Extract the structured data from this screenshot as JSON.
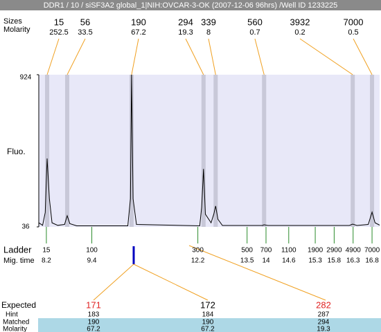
{
  "header": {
    "title": "DDR1 / 10 / siSF3A2 global_1|NIH:OVCAR-3-OK (2007-12-06 96hrs) /Well ID 1233225"
  },
  "peaks": {
    "row_labels": [
      "Sizes",
      "Molarity"
    ],
    "sizes": [
      15,
      56,
      190,
      294,
      339,
      560,
      3932,
      7000
    ],
    "molarity": [
      252.5,
      33.5,
      67.2,
      19.3,
      8,
      0.7,
      0.2,
      0.5
    ],
    "mig_time": [
      8.22,
      8.75,
      10.45,
      12.35,
      12.67,
      13.95,
      16.29,
      16.8
    ]
  },
  "axis": {
    "y_label": "Fluo.",
    "ylim": [
      36,
      924
    ],
    "yticks": [
      924,
      36
    ],
    "xlim": [
      8.0,
      17.0
    ]
  },
  "trace": {
    "x": [
      8.0,
      8.1,
      8.17,
      8.22,
      8.28,
      8.35,
      8.5,
      8.68,
      8.75,
      8.82,
      9.0,
      10.35,
      10.42,
      10.45,
      10.49,
      10.58,
      12.25,
      12.3,
      12.35,
      12.4,
      12.55,
      12.62,
      12.67,
      12.73,
      12.85,
      13.9,
      13.95,
      14.05,
      16.2,
      16.29,
      16.4,
      16.7,
      16.8,
      16.88,
      17.0
    ],
    "values": [
      60,
      45,
      120,
      435,
      200,
      60,
      45,
      50,
      101,
      55,
      42,
      42,
      200,
      924,
      200,
      50,
      42,
      150,
      374,
      110,
      60,
      110,
      158,
      80,
      44,
      44,
      48,
      44,
      44,
      52,
      44,
      50,
      122,
      60,
      46
    ]
  },
  "ladder": {
    "label": "Ladder",
    "time_label": "Mig. time",
    "sizes": [
      15,
      100,
      300,
      500,
      700,
      1100,
      1900,
      2900,
      4900,
      7000
    ],
    "mig_time": [
      8.2,
      9.4,
      12.2,
      13.5,
      14,
      14.6,
      15.3,
      15.8,
      16.3,
      16.8
    ]
  },
  "table": {
    "row_labels": [
      "Expected",
      "Hint",
      "Matched",
      "Molarity"
    ],
    "expected": [
      171,
      172,
      282
    ],
    "expected_color": [
      "#e02020",
      "#000000",
      "#e02020"
    ],
    "hint": [
      183,
      184,
      287
    ],
    "matched": [
      190,
      190,
      294
    ],
    "molarity": [
      67.2,
      67.2,
      19.3
    ]
  }
}
